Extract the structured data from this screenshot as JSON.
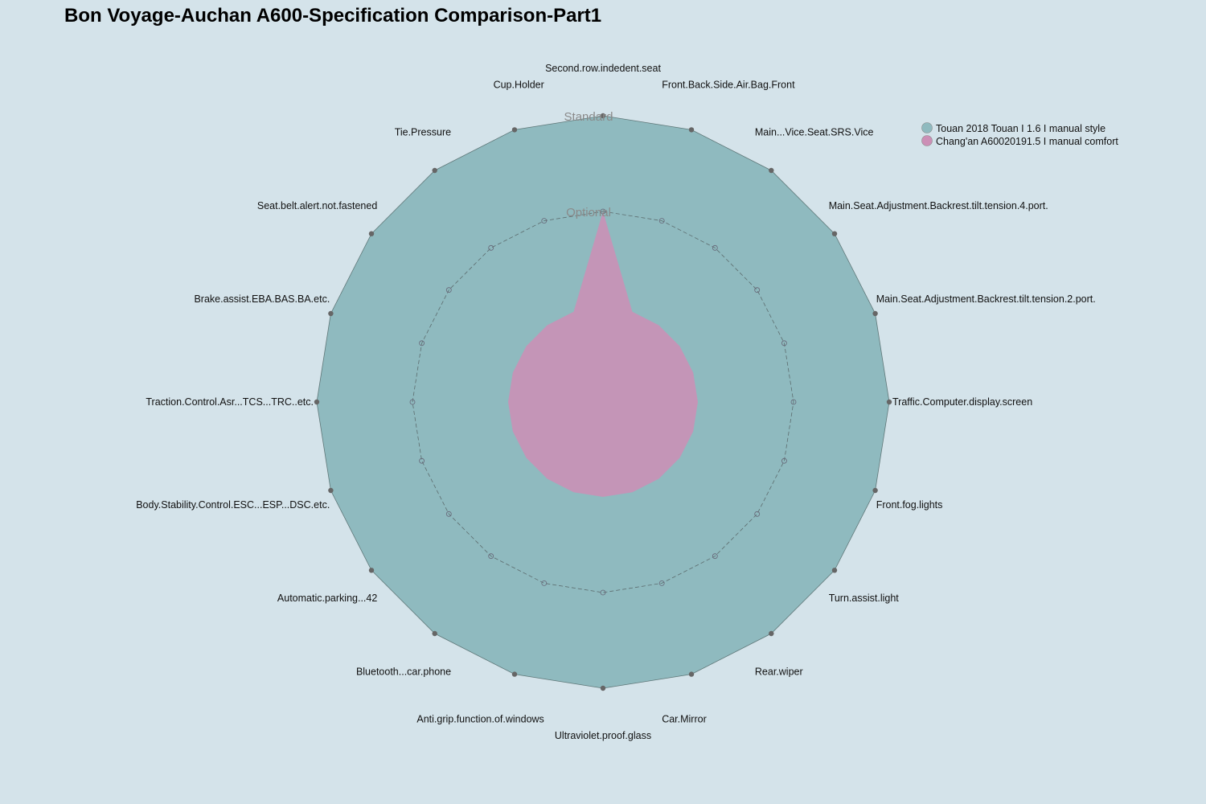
{
  "chart_data": {
    "type": "radar",
    "title": "Bon Voyage-Auchan A600-Specification Comparison-Part1",
    "levels": [
      "Optional",
      "Standard"
    ],
    "range": [
      0,
      2
    ],
    "categories": [
      "Second.row.indedent.seat",
      "Front.Back.Side.Air.Bag.Front",
      "Main...Vice.Seat.SRS.Vice",
      "Main.Seat.Adjustment.Backrest.tilt.tension.4.port.",
      "Main.Seat.Adjustment.Backrest.tilt.tension.2.port.",
      "Traffic.Computer.display.screen",
      "Front.fog.lights",
      "Turn.assist.light",
      "Rear.wiper",
      "Car.Mirror",
      "Ultraviolet.proof.glass",
      "Anti.grip.function.of.windows",
      "Bluetooth...car.phone",
      "Automatic.parking...42",
      "Body.Stability.Control.ESC...ESP...DSC.etc.",
      "Traction.Control.Asr...TCS...TRC..etc.",
      "Brake.assist.EBA.BAS.BA.etc.",
      "Seat.belt.alert.not.fastened",
      "Tie.Pressure",
      "Cup.Holder"
    ],
    "series": [
      {
        "name": "Touan 2018 Touan I 1.6 I manual style",
        "color": "#8fbabf",
        "values": [
          2,
          2,
          2,
          2,
          2,
          2,
          2,
          2,
          2,
          2,
          2,
          2,
          2,
          2,
          2,
          2,
          2,
          2,
          2,
          2
        ]
      },
      {
        "name": "Chang'an A60020191.5 I manual comfort",
        "color": "#cc8fb6",
        "values": [
          1,
          0,
          0,
          0,
          0,
          0,
          0,
          0,
          0,
          0,
          0,
          0,
          0,
          0,
          0,
          0,
          0,
          0,
          0,
          0
        ]
      }
    ],
    "legend_position": "top-right"
  }
}
